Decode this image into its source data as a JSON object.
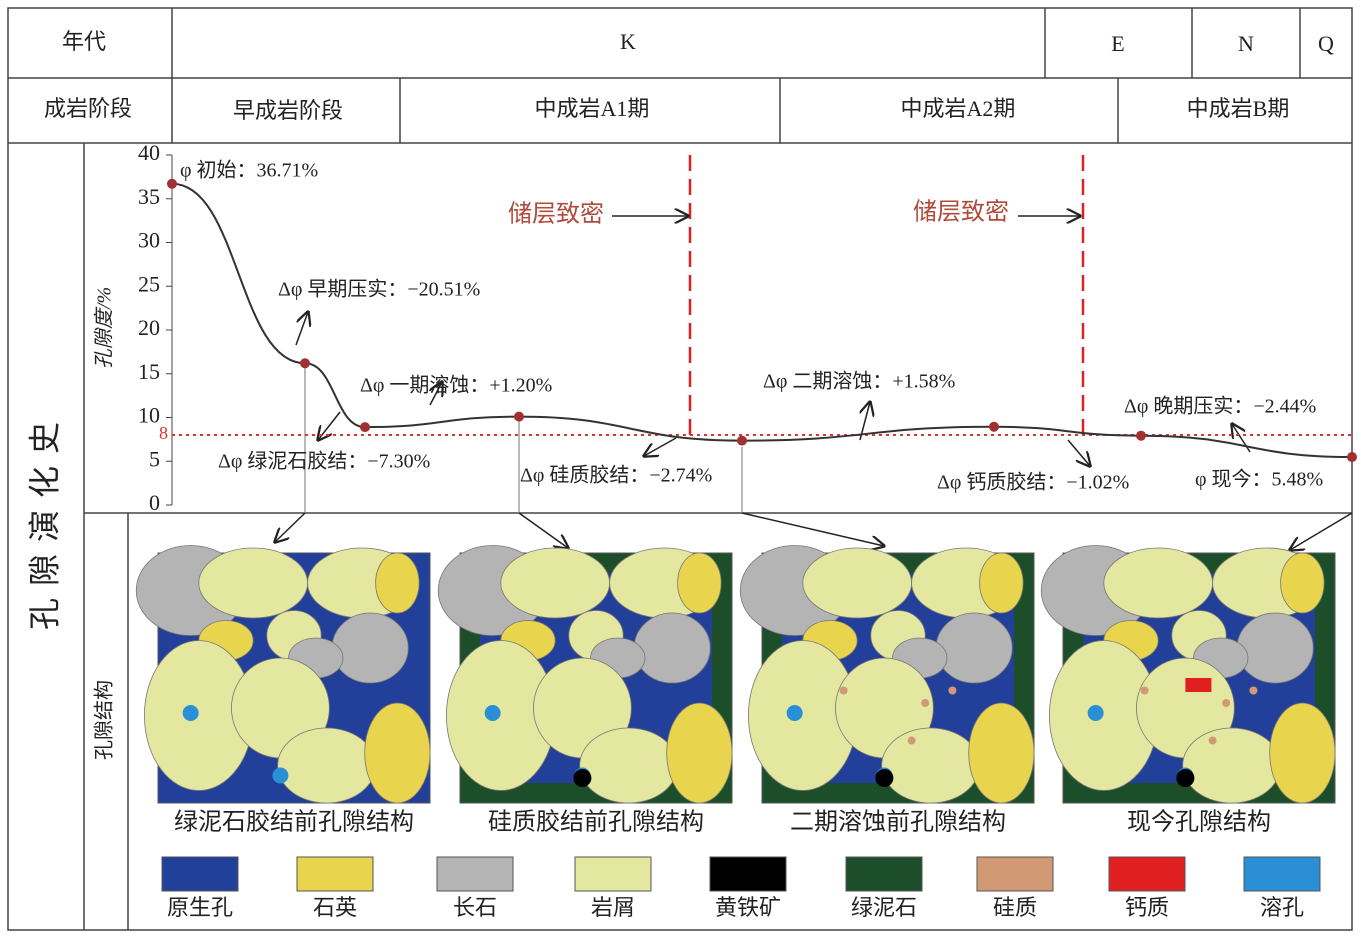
{
  "header": {
    "row1": {
      "label": "年代",
      "cells": [
        "K",
        "E",
        "N",
        "Q"
      ]
    },
    "row2": {
      "label": "成岩阶段",
      "cells": [
        "早成岩阶段",
        "中成岩A1期",
        "中成岩A2期",
        "中成岩B期"
      ]
    }
  },
  "side_title": "孔隙演化史",
  "chart_data": {
    "type": "line",
    "y_label": "孔隙度/%",
    "categories": [
      null,
      null,
      null,
      null,
      null,
      null,
      null,
      null
    ],
    "series": [
      {
        "name": null,
        "color": "#333333",
        "values": [
          36.71,
          16.2,
          8.9,
          10.1,
          7.36,
          8.94,
          7.92,
          5.48
        ]
      }
    ],
    "ylim": [
      0,
      40
    ],
    "yticks": [
      0,
      5,
      10,
      15,
      20,
      25,
      30,
      35,
      40
    ],
    "threshold": 8,
    "threshold_color": "#d33",
    "marker_color": "#a33030",
    "annotations": [
      "φ 初始：36.71%",
      "Δφ 早期压实：−20.51%",
      "Δφ 一期溶蚀：+1.20%",
      "Δφ 绿泥石胶结：−7.30%",
      "Δφ 硅质胶结：−2.74%",
      "Δφ 二期溶蚀：+1.58%",
      "Δφ 钙质胶结：−1.02%",
      "Δφ 晚期压实：−2.44%",
      "φ 现今：5.48%"
    ],
    "tight_labels": [
      "储层致密",
      "储层致密"
    ]
  },
  "structure_title": "孔隙结构",
  "panels": [
    "绿泥石胶结前孔隙结构",
    "硅质胶结前孔隙结构",
    "二期溶蚀前孔隙结构",
    "现今孔隙结构"
  ],
  "legend": [
    {
      "name": "原生孔",
      "color": "#22409a"
    },
    {
      "name": "石英",
      "color": "#e8d44d"
    },
    {
      "name": "长石",
      "color": "#b4b4b4"
    },
    {
      "name": "岩屑",
      "color": "#e4e7a0"
    },
    {
      "name": "黄铁矿",
      "color": "#000000"
    },
    {
      "name": "绿泥石",
      "color": "#1d4e2a"
    },
    {
      "name": "硅质",
      "color": "#d29a74"
    },
    {
      "name": "钙质",
      "color": "#e02020"
    },
    {
      "name": "溶孔",
      "color": "#2a8fd4"
    }
  ]
}
